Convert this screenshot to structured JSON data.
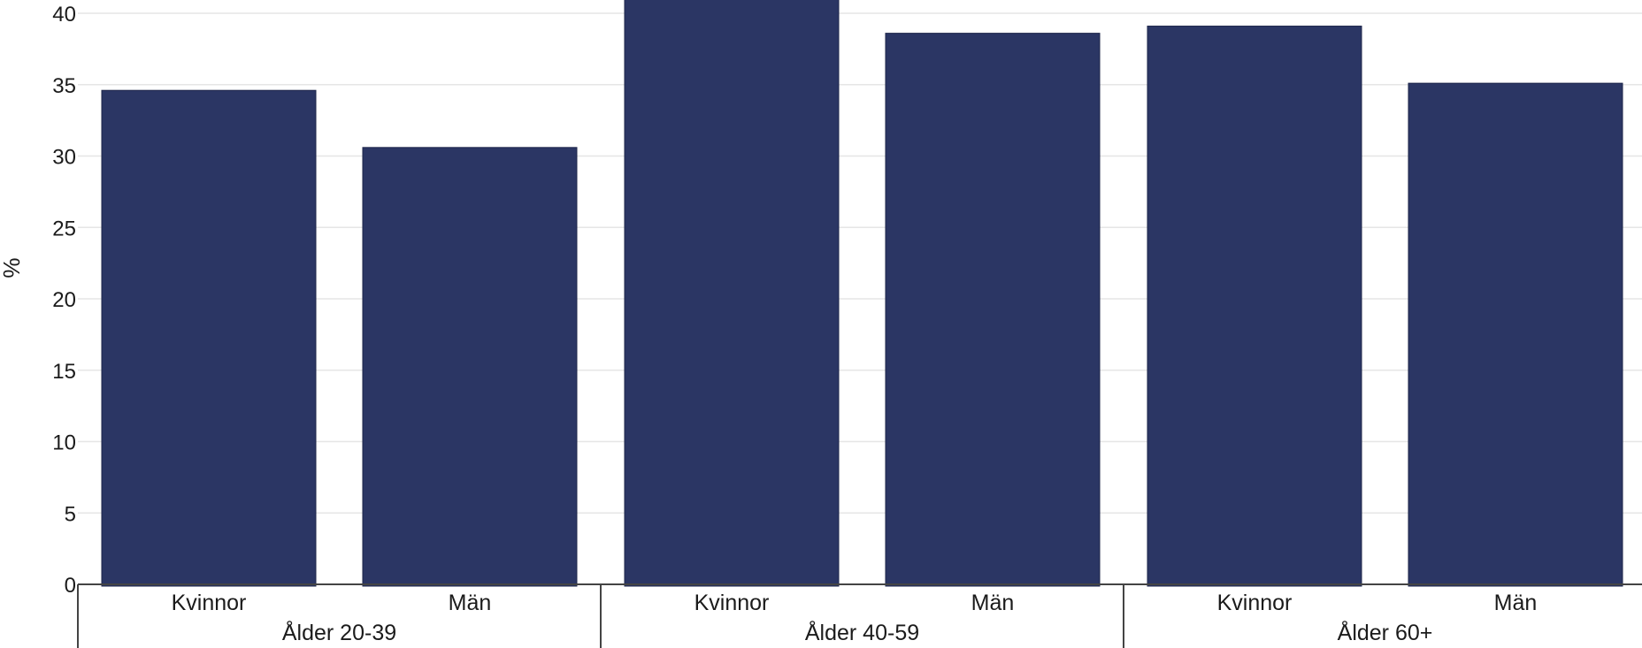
{
  "chart_data": {
    "type": "bar",
    "title": "",
    "xlabel": "",
    "ylabel": "%",
    "ylim": [
      0,
      41
    ],
    "yticks": [
      0,
      5,
      10,
      15,
      20,
      25,
      30,
      35,
      40
    ],
    "grid": true,
    "bar_color": "#2b3664",
    "groups": [
      {
        "label": "Ålder 20-39",
        "categories": [
          "Kvinnor",
          "Män"
        ],
        "values": [
          34.6,
          30.6
        ]
      },
      {
        "label": "Ålder 40-59",
        "categories": [
          "Kvinnor",
          "Män"
        ],
        "values": [
          43.0,
          38.6
        ]
      },
      {
        "label": "Ålder 60+",
        "categories": [
          "Kvinnor",
          "Män"
        ],
        "values": [
          39.1,
          35.1
        ]
      }
    ]
  }
}
